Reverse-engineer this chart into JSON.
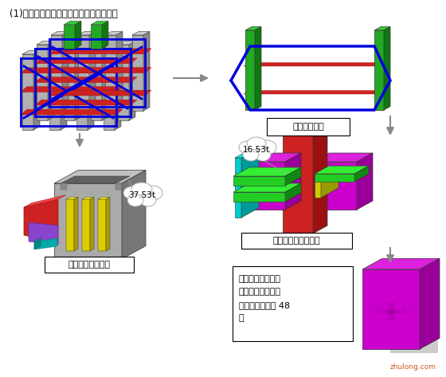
{
  "title": "(1)、伸臂楠架的制作重点有以下几方面：",
  "label_single": "单檄伸臂楠架",
  "label_column_node": "柱与伸臂楠架节点",
  "label_cast_node": "伸臂楠架铸钓件节点",
  "label_weight1": "37.53t",
  "label_weight2": "16.53t",
  "label_desc": "工程只有伸臂楠架\n与伸臂框架柱节点\n为铸钓件，总共 48\n件",
  "watermark": "zhulong.com",
  "bg_color": "#ffffff"
}
